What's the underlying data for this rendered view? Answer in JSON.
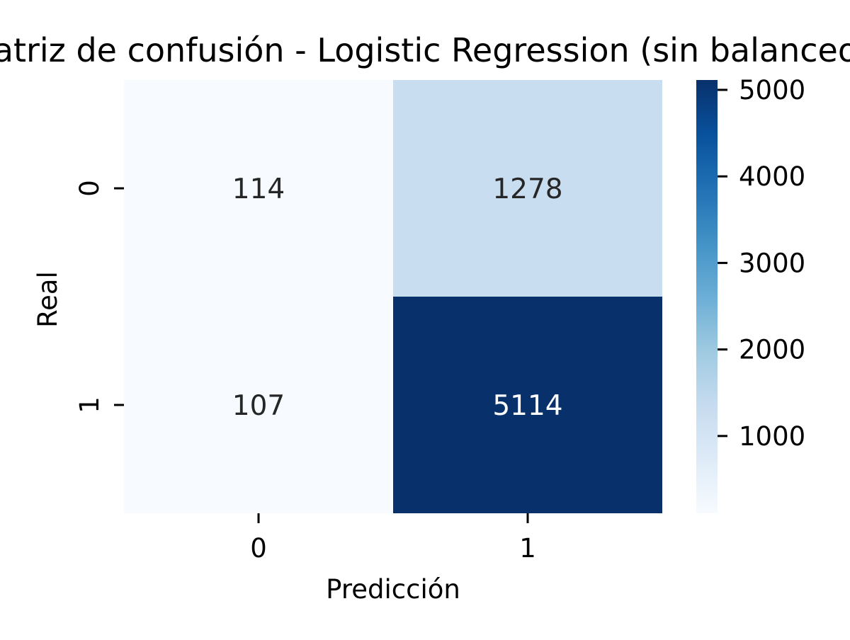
{
  "chart_data": {
    "type": "heatmap",
    "title": "Matriz de confusión - Logistic Regression (sin balanceo)",
    "xlabel": "Predicción",
    "ylabel": "Real",
    "x_categories": [
      "0",
      "1"
    ],
    "y_categories": [
      "0",
      "1"
    ],
    "values": [
      [
        114,
        1278
      ],
      [
        107,
        5114
      ]
    ],
    "colormap": "Blues",
    "colorbar": {
      "ticks": [
        "1000",
        "2000",
        "3000",
        "4000",
        "5000"
      ],
      "range": [
        107,
        5114
      ]
    },
    "colors": {
      "low": "#f7fbff",
      "high": "#08306b",
      "dark_text": "#262626",
      "light_text": "#ffffff"
    }
  }
}
